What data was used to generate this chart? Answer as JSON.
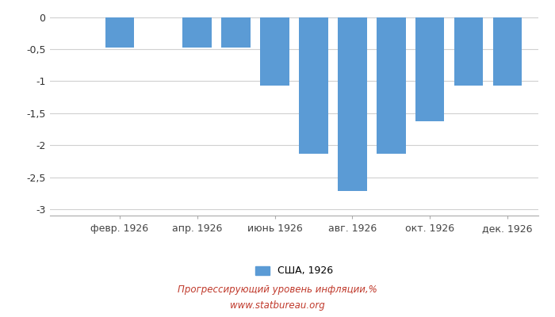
{
  "x_positions": [
    1,
    2,
    3,
    4,
    5,
    6,
    7,
    8,
    9,
    10,
    11,
    12
  ],
  "values": [
    0,
    -0.47,
    0,
    -0.47,
    -0.47,
    -1.07,
    -2.13,
    -2.72,
    -2.13,
    -1.63,
    -1.07,
    -1.07
  ],
  "bar_color": "#5b9bd5",
  "ylim": [
    -3.1,
    0.12
  ],
  "yticks": [
    0,
    -0.5,
    -1,
    -1.5,
    -2,
    -2.5,
    -3
  ],
  "ytick_labels": [
    "0",
    "-0,5",
    "-1",
    "-1,5",
    "-2",
    "-2,5",
    "-3"
  ],
  "xtick_positions": [
    2,
    4,
    6,
    8,
    10,
    12
  ],
  "xtick_labels": [
    "февр. 1926",
    "апр. 1926",
    "июнь 1926",
    "авг. 1926",
    "окт. 1926",
    "дек. 1926"
  ],
  "legend_label": "США, 1926",
  "title_line1": "Прогрессирующий уровень инфляции,%",
  "title_line2": "www.statbureau.org",
  "background_color": "#ffffff",
  "grid_color": "#d0d0d0",
  "title_color": "#c0392b",
  "bar_width": 0.75
}
